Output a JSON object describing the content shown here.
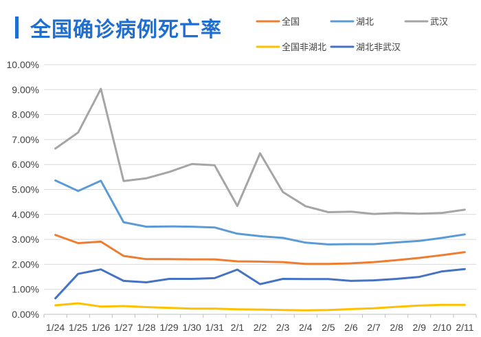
{
  "title": "全国确诊病例死亡率",
  "colors": {
    "accent": "#1f6fd1",
    "grid": "#d9d9d9",
    "axis": "#bfbfbf",
    "text": "#404040"
  },
  "chart_data": {
    "type": "line",
    "title": "全国确诊病例死亡率",
    "xlabel": "",
    "ylabel": "",
    "categories": [
      "1/24",
      "1/25",
      "1/26",
      "1/27",
      "1/28",
      "1/29",
      "1/30",
      "1/31",
      "2/1",
      "2/2",
      "2/3",
      "2/4",
      "2/5",
      "2/6",
      "2/7",
      "2/8",
      "2/9",
      "2/10",
      "2/11"
    ],
    "ylim": [
      0,
      10
    ],
    "yticks": [
      "0.00%",
      "1.00%",
      "2.00%",
      "3.00%",
      "4.00%",
      "5.00%",
      "6.00%",
      "7.00%",
      "8.00%",
      "9.00%",
      "10.00%"
    ],
    "grid": true,
    "legend_position": "top-right",
    "series": [
      {
        "name": "全国",
        "color": "#ed7d31",
        "values": [
          3.18,
          2.85,
          2.91,
          2.34,
          2.21,
          2.21,
          2.2,
          2.2,
          2.12,
          2.11,
          2.09,
          2.02,
          2.02,
          2.04,
          2.09,
          2.17,
          2.26,
          2.37,
          2.49
        ]
      },
      {
        "name": "湖北",
        "color": "#5b9bd5",
        "values": [
          5.36,
          4.94,
          5.35,
          3.69,
          3.51,
          3.52,
          3.51,
          3.48,
          3.23,
          3.13,
          3.06,
          2.87,
          2.8,
          2.81,
          2.81,
          2.88,
          2.94,
          3.06,
          3.2
        ]
      },
      {
        "name": "武汉",
        "color": "#a5a5a5",
        "values": [
          6.64,
          7.28,
          9.03,
          5.34,
          5.45,
          5.7,
          6.02,
          5.97,
          4.34,
          6.45,
          4.9,
          4.33,
          4.09,
          4.11,
          4.02,
          4.06,
          4.03,
          4.06,
          4.19
        ]
      },
      {
        "name": "全国非湖北",
        "color": "#ffc000",
        "values": [
          0.36,
          0.44,
          0.31,
          0.33,
          0.29,
          0.26,
          0.23,
          0.23,
          0.2,
          0.19,
          0.17,
          0.16,
          0.17,
          0.21,
          0.24,
          0.3,
          0.35,
          0.38,
          0.38
        ]
      },
      {
        "name": "湖北非武汉",
        "color": "#4472c4",
        "values": [
          0.64,
          1.62,
          1.8,
          1.34,
          1.28,
          1.42,
          1.42,
          1.45,
          1.79,
          1.21,
          1.42,
          1.41,
          1.41,
          1.34,
          1.36,
          1.42,
          1.5,
          1.72,
          1.81
        ]
      }
    ]
  }
}
